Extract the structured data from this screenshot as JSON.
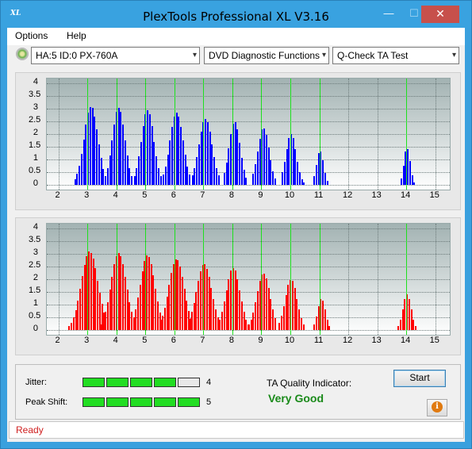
{
  "window": {
    "title": "PlexTools Professional XL V3.16",
    "icon_text": "XL",
    "min": "—",
    "max": "☐",
    "close": "✕"
  },
  "menu": {
    "options": "Options",
    "help": "Help"
  },
  "toolbar": {
    "drive": "HA:5 ID:0  PX-760A",
    "function": "DVD Diagnostic Functions",
    "test": "Q-Check TA Test",
    "arrow": "▾"
  },
  "chart_data": [
    {
      "type": "bar",
      "title": "",
      "color": "#0000ff",
      "xlim": [
        1.6,
        15.5
      ],
      "ylim": [
        -0.2,
        4.2
      ],
      "xticks": [
        "2",
        "3",
        "4",
        "5",
        "6",
        "7",
        "8",
        "9",
        "10",
        "11",
        "12",
        "13",
        "14",
        "15"
      ],
      "yticks": [
        "0",
        "0.5",
        "1",
        "1.5",
        "2",
        "2.5",
        "3",
        "3.5",
        "4"
      ],
      "peaks": [
        3,
        4,
        5,
        6,
        7,
        8,
        9,
        10,
        11,
        14
      ],
      "clusters": [
        {
          "center": 3.1,
          "height": 3.1,
          "from": 2.55,
          "to": 3.55
        },
        {
          "center": 4.05,
          "height": 3.05,
          "from": 3.6,
          "to": 4.5
        },
        {
          "center": 5.05,
          "height": 2.95,
          "from": 4.6,
          "to": 5.5
        },
        {
          "center": 6.05,
          "height": 2.85,
          "from": 5.6,
          "to": 6.55
        },
        {
          "center": 7.05,
          "height": 2.6,
          "from": 6.6,
          "to": 7.55
        },
        {
          "center": 8.05,
          "height": 2.5,
          "from": 7.7,
          "to": 8.5
        },
        {
          "center": 9.05,
          "height": 2.25,
          "from": 8.7,
          "to": 9.5
        },
        {
          "center": 10.0,
          "height": 2.0,
          "from": 9.7,
          "to": 10.45
        },
        {
          "center": 11.0,
          "height": 1.35,
          "from": 10.8,
          "to": 11.3
        },
        {
          "center": 14.0,
          "height": 1.45,
          "from": 13.8,
          "to": 14.25
        }
      ]
    },
    {
      "type": "bar",
      "title": "",
      "color": "#ff0000",
      "xlim": [
        1.6,
        15.5
      ],
      "ylim": [
        -0.2,
        4.2
      ],
      "xticks": [
        "2",
        "3",
        "4",
        "5",
        "6",
        "7",
        "8",
        "9",
        "10",
        "11",
        "12",
        "13",
        "14",
        "15"
      ],
      "yticks": [
        "0",
        "0.5",
        "1",
        "1.5",
        "2",
        "2.5",
        "3",
        "3.5",
        "4"
      ],
      "peaks": [
        3,
        4,
        5,
        6,
        7,
        8,
        9,
        10,
        11,
        14
      ],
      "clusters": [
        {
          "center": 3.05,
          "height": 3.1,
          "from": 2.35,
          "to": 3.55
        },
        {
          "center": 4.05,
          "height": 3.05,
          "from": 3.45,
          "to": 4.55
        },
        {
          "center": 5.05,
          "height": 2.95,
          "from": 4.5,
          "to": 5.55
        },
        {
          "center": 6.05,
          "height": 2.8,
          "from": 5.5,
          "to": 6.6
        },
        {
          "center": 7.0,
          "height": 2.6,
          "from": 6.5,
          "to": 7.6
        },
        {
          "center": 8.0,
          "height": 2.45,
          "from": 7.55,
          "to": 8.55
        },
        {
          "center": 9.05,
          "height": 2.25,
          "from": 8.55,
          "to": 9.5
        },
        {
          "center": 10.0,
          "height": 2.0,
          "from": 9.6,
          "to": 10.45
        },
        {
          "center": 11.05,
          "height": 1.25,
          "from": 10.8,
          "to": 11.35
        },
        {
          "center": 14.0,
          "height": 1.4,
          "from": 13.7,
          "to": 14.3
        }
      ]
    }
  ],
  "panel": {
    "jitter_label": "Jitter:",
    "jitter_value": "4",
    "jitter_level": 4,
    "peak_label": "Peak Shift:",
    "peak_value": "5",
    "peak_level": 5,
    "ta_label": "TA Quality Indicator:",
    "ta_value": "Very Good",
    "start": "Start",
    "info": "i"
  },
  "status": "Ready",
  "colors": {
    "meter_on": "#22dd22",
    "meter_off": "#e8e8e8",
    "peak_line": "#1ee01e"
  }
}
